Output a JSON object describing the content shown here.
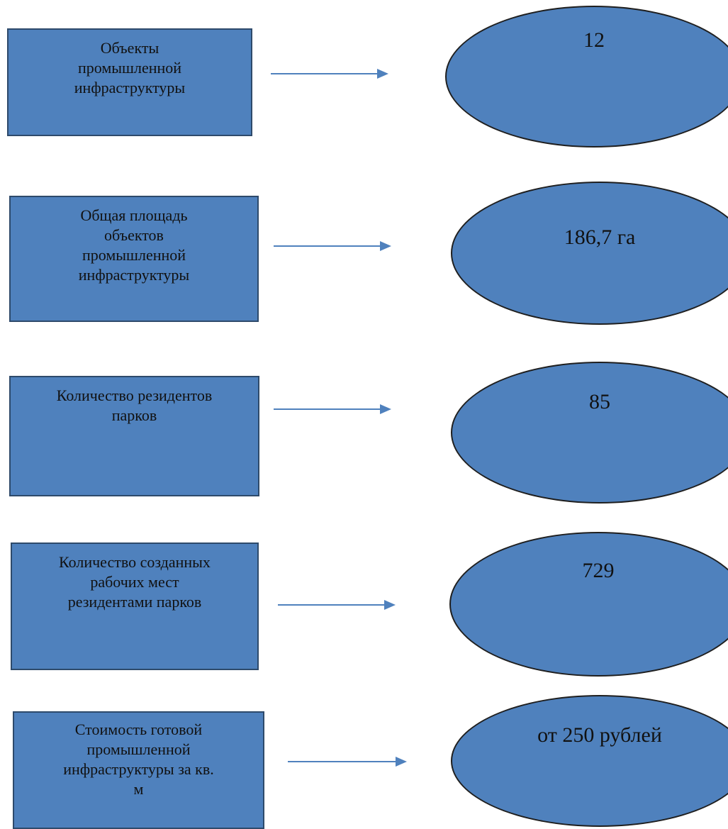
{
  "colors": {
    "box_fill": "#4f81bd",
    "box_border": "#2e4a6b",
    "oval_fill": "#4f81bd",
    "oval_border": "#1f1f1f",
    "arrow": "#4f81bd"
  },
  "rows": [
    {
      "label_lines": [
        "Объекты",
        "промышленной",
        "инфраструктуры"
      ],
      "value": "12"
    },
    {
      "label_lines": [
        "Общая площадь",
        "объектов",
        "промышленной",
        "инфраструктуры"
      ],
      "value": "186,7 га"
    },
    {
      "label_lines": [
        "Количество резидентов",
        "парков"
      ],
      "value": "85"
    },
    {
      "label_lines": [
        "Количество созданных",
        "рабочих мест",
        "резидентами парков"
      ],
      "value": "729"
    },
    {
      "label_lines": [
        "Стоимость готовой",
        "промышленной",
        "инфраструктуры за кв.",
        "м"
      ],
      "value": "от 250 рублей"
    }
  ]
}
